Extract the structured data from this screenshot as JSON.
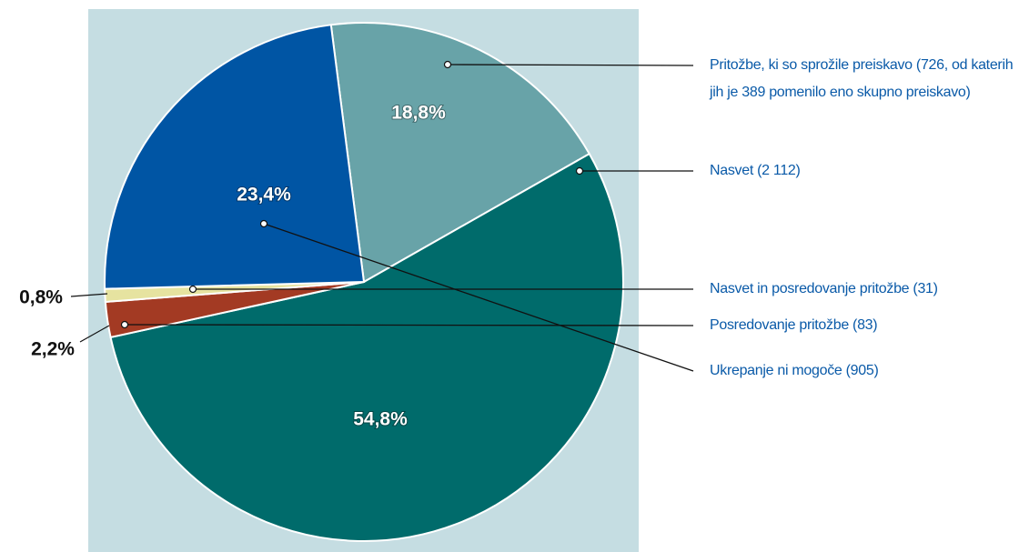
{
  "chart_data": {
    "type": "pie",
    "categories": [
      "Pritožbe, ki so sprožile preiskavo (726, od katerih jih je 389 pomenilo eno skupno preiskavo)",
      "Nasvet (2 112)",
      "Posredovanje pritožbe (83)",
      "Nasvet in posredovanje pritožbe (31)",
      "Ukrepanje ni mogoče (905)"
    ],
    "values": [
      18.8,
      54.8,
      2.2,
      0.8,
      23.4
    ],
    "value_labels": [
      "18,8%",
      "54,8%",
      "2,2%",
      "0,8%",
      "23,4%"
    ],
    "colors": [
      "#68a3a8",
      "#006b6b",
      "#a33a23",
      "#e6e3a0",
      "#0055a4"
    ]
  }
}
